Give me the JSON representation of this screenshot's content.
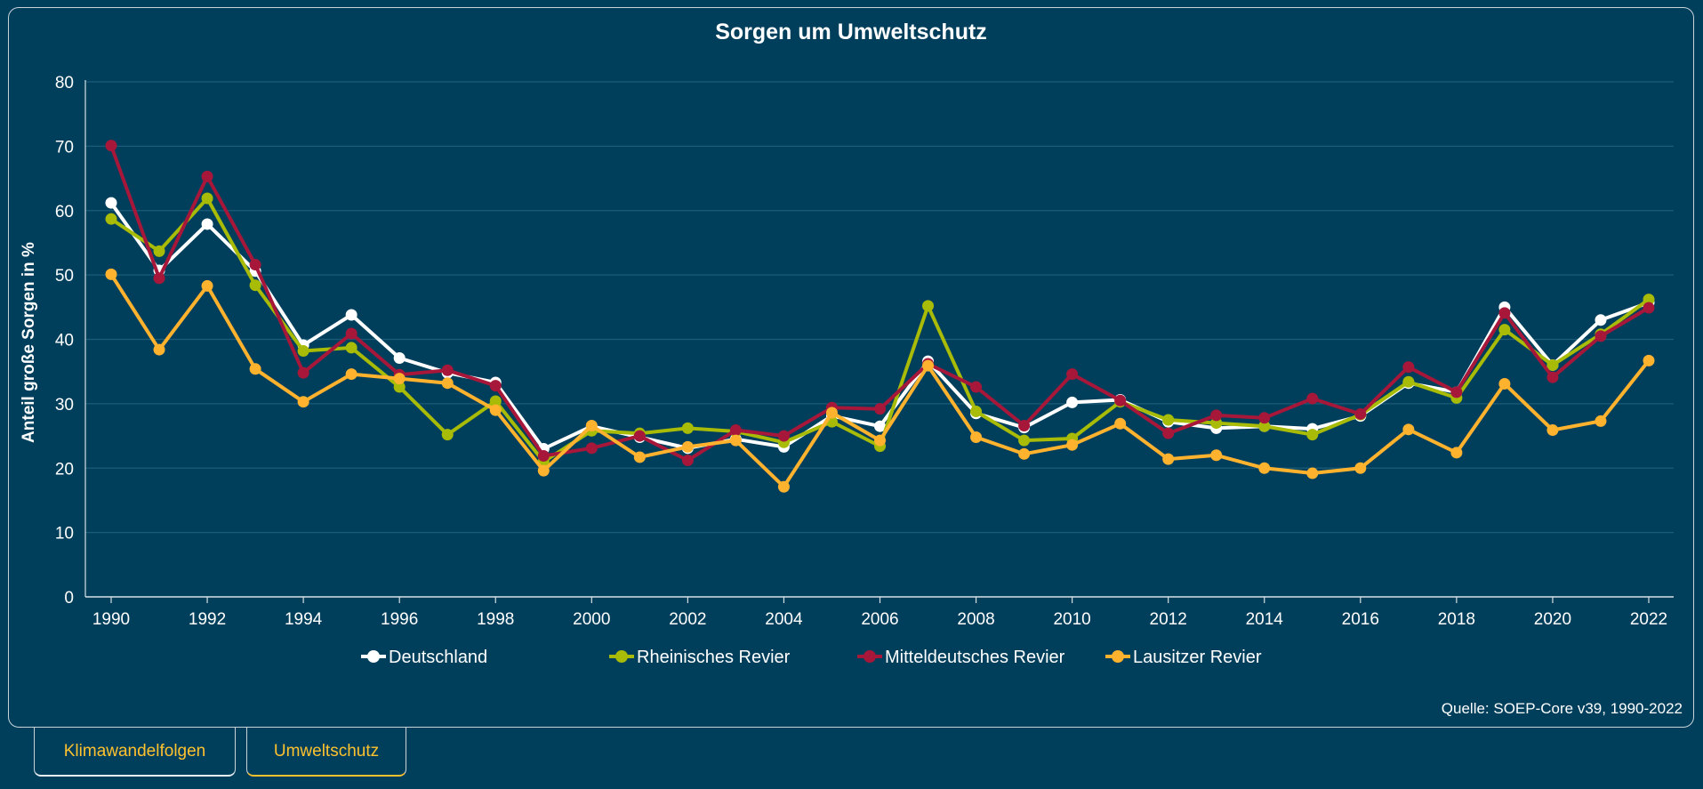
{
  "chart_data": {
    "type": "line",
    "title": "Sorgen um Umweltschutz",
    "ylabel": "Anteil große Sorgen in %",
    "xlabel": "",
    "ylim": [
      0,
      80
    ],
    "yticks": [
      "0",
      "10",
      "20",
      "30",
      "40",
      "50",
      "60",
      "70",
      "80"
    ],
    "xlim": [
      1990,
      2022
    ],
    "xticks": [
      "1990",
      "1992",
      "1994",
      "1996",
      "1998",
      "2000",
      "2002",
      "2004",
      "2006",
      "2008",
      "2010",
      "2012",
      "2014",
      "2016",
      "2018",
      "2020",
      "2022"
    ],
    "grid": true,
    "legend_position": "bottom",
    "x": [
      1990,
      1991,
      1992,
      1993,
      1994,
      1995,
      1996,
      1997,
      1998,
      1999,
      2000,
      2001,
      2002,
      2003,
      2004,
      2005,
      2006,
      2007,
      2008,
      2009,
      2010,
      2011,
      2012,
      2013,
      2014,
      2015,
      2016,
      2017,
      2018,
      2019,
      2020,
      2021,
      2022
    ],
    "series": [
      {
        "name": "Deutschland",
        "color": "#ffffff",
        "values": [
          61.2,
          50.7,
          57.9,
          50.6,
          39.1,
          43.8,
          37.1,
          34.8,
          33.3,
          23.0,
          26.5,
          24.8,
          23.1,
          24.5,
          23.3,
          28.1,
          26.5,
          36.6,
          28.5,
          26.3,
          30.2,
          30.6,
          27.2,
          26.2,
          26.5,
          26.1,
          28.1,
          33.2,
          31.8,
          45.0,
          36.0,
          43.0,
          45.7
        ]
      },
      {
        "name": "Rheinisches Revier",
        "color": "#a8bb06",
        "values": [
          58.7,
          53.7,
          61.9,
          48.4,
          38.2,
          38.7,
          32.6,
          25.2,
          30.4,
          21.0,
          25.8,
          25.4,
          26.2,
          25.7,
          24.0,
          27.2,
          23.4,
          45.2,
          28.8,
          24.3,
          24.6,
          30.3,
          27.5,
          27.0,
          26.5,
          25.2,
          28.3,
          33.4,
          30.9,
          41.5,
          36.0,
          40.8,
          46.2
        ]
      },
      {
        "name": "Mitteldeutsches Revier",
        "color": "#a6173a",
        "values": [
          70.1,
          49.5,
          65.3,
          51.6,
          34.8,
          40.9,
          34.5,
          35.2,
          32.8,
          21.9,
          23.1,
          25.0,
          21.2,
          25.9,
          25.0,
          29.4,
          29.2,
          36.2,
          32.6,
          26.6,
          34.6,
          30.5,
          25.4,
          28.2,
          27.8,
          30.8,
          28.4,
          35.7,
          31.8,
          44.1,
          34.1,
          40.5,
          44.9
        ]
      },
      {
        "name": "Lausitzer Revier",
        "color": "#ffb22d",
        "values": [
          50.1,
          38.4,
          48.3,
          35.4,
          30.3,
          34.6,
          33.9,
          33.2,
          29.0,
          19.6,
          26.6,
          21.7,
          23.3,
          24.3,
          17.1,
          28.6,
          24.3,
          35.9,
          24.8,
          22.2,
          23.6,
          26.9,
          21.4,
          22.0,
          20.0,
          19.2,
          20.0,
          26.0,
          22.4,
          33.1,
          25.9,
          27.3,
          36.7
        ]
      }
    ],
    "source": "Quelle: SOEP-Core v39, 1990-2022"
  },
  "tabs": [
    {
      "label": "Klimawandelfolgen",
      "active": false
    },
    {
      "label": "Umweltschutz",
      "active": true
    }
  ],
  "colors": {
    "background": "#003f5c",
    "gridline": "#1c5c78",
    "text": "#ffffff",
    "tab_text": "#ffc12e"
  }
}
